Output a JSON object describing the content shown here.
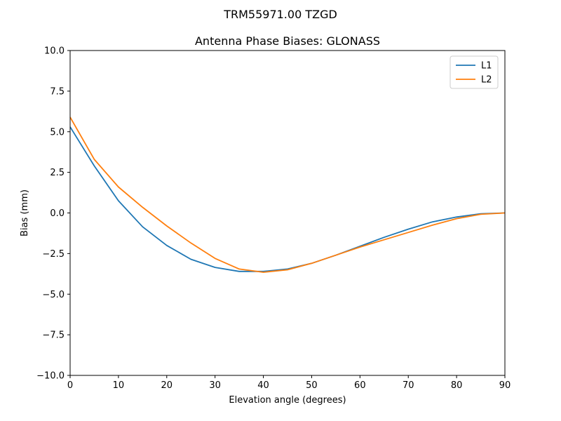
{
  "suptitle": "TRM55971.00      TZGD",
  "chart_data": {
    "type": "line",
    "title": "Antenna Phase Biases: GLONASS",
    "xlabel": "Elevation angle (degrees)",
    "ylabel": "Bias (mm)",
    "xlim": [
      0,
      90
    ],
    "ylim": [
      -10,
      10
    ],
    "xticks": [
      0,
      10,
      20,
      30,
      40,
      50,
      60,
      70,
      80,
      90
    ],
    "yticks": [
      -10.0,
      -7.5,
      -5.0,
      -2.5,
      0.0,
      2.5,
      5.0,
      7.5,
      10.0
    ],
    "xtick_labels": [
      "0",
      "10",
      "20",
      "30",
      "40",
      "50",
      "60",
      "70",
      "80",
      "90"
    ],
    "ytick_labels": [
      "−10.0",
      "−7.5",
      "−5.0",
      "−2.5",
      "0.0",
      "2.5",
      "5.0",
      "7.5",
      "10.0"
    ],
    "grid": false,
    "legend_position": "top-right",
    "x": [
      0,
      5,
      10,
      15,
      20,
      25,
      30,
      35,
      40,
      45,
      50,
      55,
      60,
      65,
      70,
      75,
      80,
      85,
      90
    ],
    "series": [
      {
        "name": "L1",
        "color": "#1f77b4",
        "values": [
          5.3,
          2.9,
          0.75,
          -0.85,
          -2.0,
          -2.85,
          -3.35,
          -3.6,
          -3.6,
          -3.45,
          -3.1,
          -2.6,
          -2.05,
          -1.5,
          -1.0,
          -0.55,
          -0.25,
          -0.05,
          0.0
        ]
      },
      {
        "name": "L2",
        "color": "#ff7f0e",
        "values": [
          5.9,
          3.3,
          1.6,
          0.35,
          -0.8,
          -1.85,
          -2.8,
          -3.45,
          -3.65,
          -3.5,
          -3.1,
          -2.6,
          -2.1,
          -1.65,
          -1.2,
          -0.75,
          -0.35,
          -0.08,
          0.0
        ]
      }
    ]
  }
}
